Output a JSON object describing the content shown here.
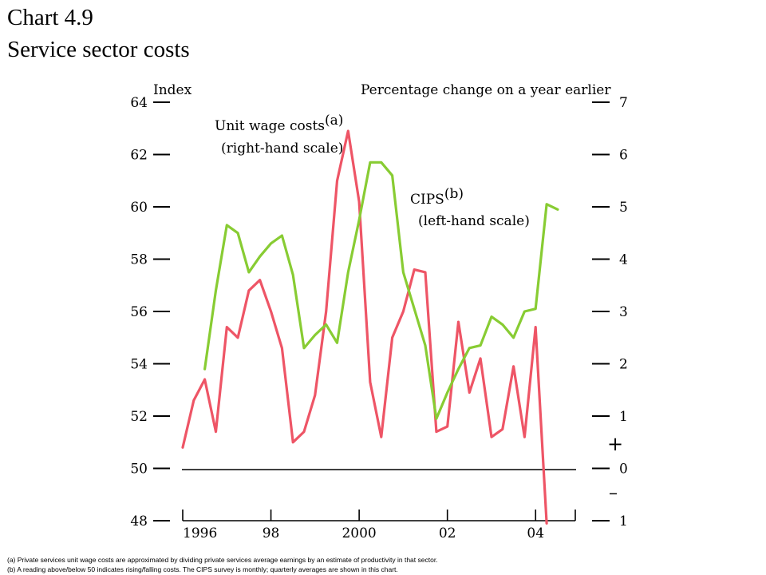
{
  "heading": {
    "number": "Chart 4.9",
    "title": "Service sector costs"
  },
  "chart_data": {
    "type": "line",
    "left_axis": {
      "label": "Index",
      "ticks": [
        48,
        50,
        52,
        54,
        56,
        58,
        60,
        62,
        64
      ],
      "range": [
        48,
        64
      ]
    },
    "right_axis": {
      "label": "Percentage change on a year earlier",
      "ticks": [
        "1",
        "0",
        "1",
        "2",
        "3",
        "4",
        "5",
        "6",
        "7"
      ],
      "tick_values": [
        -1,
        0,
        1,
        2,
        3,
        4,
        5,
        6,
        7
      ],
      "range": [
        -1,
        7
      ],
      "plus_sign": "+",
      "minus_sign": "–"
    },
    "x_axis": {
      "tick_labels": [
        "1996",
        "98",
        "2000",
        "02",
        "04"
      ],
      "tick_years": [
        1996,
        1998,
        2000,
        2002,
        2004
      ],
      "range": [
        1996,
        2004.9
      ]
    },
    "series": [
      {
        "name": "Unit wage costs",
        "superscript": "(a)",
        "scale_note": "(right-hand scale)",
        "axis": "right",
        "color": "#ee5566",
        "x": [
          1996.0,
          1996.25,
          1996.5,
          1996.75,
          1997.0,
          1997.25,
          1997.5,
          1997.75,
          1998.0,
          1998.25,
          1998.5,
          1998.75,
          1999.0,
          1999.25,
          1999.5,
          1999.75,
          2000.0,
          2000.25,
          2000.5,
          2000.75,
          2001.0,
          2001.25,
          2001.5,
          2001.75,
          2002.0,
          2002.25,
          2002.5,
          2002.75,
          2003.0,
          2003.25,
          2003.5,
          2003.75,
          2004.0,
          2004.25
        ],
        "values": [
          0.4,
          1.3,
          1.7,
          0.7,
          2.7,
          2.5,
          3.4,
          3.6,
          3.0,
          2.3,
          0.5,
          0.7,
          1.4,
          3.0,
          5.5,
          6.45,
          5.1,
          1.65,
          0.6,
          2.5,
          3.0,
          3.8,
          3.75,
          0.7,
          0.8,
          2.8,
          1.45,
          2.1,
          0.6,
          0.75,
          1.95,
          0.6,
          2.7,
          -1.05
        ]
      },
      {
        "name": "CIPS",
        "superscript": "(b)",
        "scale_note": "(left-hand scale)",
        "axis": "left",
        "color": "#88cc33",
        "x": [
          1996.5,
          1996.75,
          1997.0,
          1997.25,
          1997.5,
          1997.75,
          1998.0,
          1998.25,
          1998.5,
          1998.75,
          1999.0,
          1999.25,
          1999.5,
          1999.75,
          2000.0,
          2000.25,
          2000.5,
          2000.75,
          2001.0,
          2001.25,
          2001.5,
          2001.75,
          2002.0,
          2002.25,
          2002.5,
          2002.75,
          2003.0,
          2003.25,
          2003.5,
          2003.75,
          2004.0,
          2004.25,
          2004.5
        ],
        "values": [
          53.8,
          56.8,
          59.3,
          59.0,
          57.5,
          58.1,
          58.6,
          58.9,
          57.4,
          54.6,
          55.1,
          55.5,
          54.8,
          57.5,
          59.5,
          61.7,
          61.7,
          61.2,
          57.5,
          56.1,
          54.7,
          51.9,
          52.9,
          53.8,
          54.6,
          54.7,
          55.8,
          55.5,
          55.0,
          56.0,
          56.1,
          60.1,
          59.9
        ]
      }
    ],
    "grid": false,
    "legend": "inline labels"
  },
  "footnotes": {
    "a": "(a)  Private services unit wage costs are approximated by dividing private services average earnings by an estimate of productivity in that sector.",
    "b": "(b)  A reading above/below 50 indicates rising/falling costs.  The CIPS survey is monthly;  quarterly averages are shown in this chart."
  }
}
